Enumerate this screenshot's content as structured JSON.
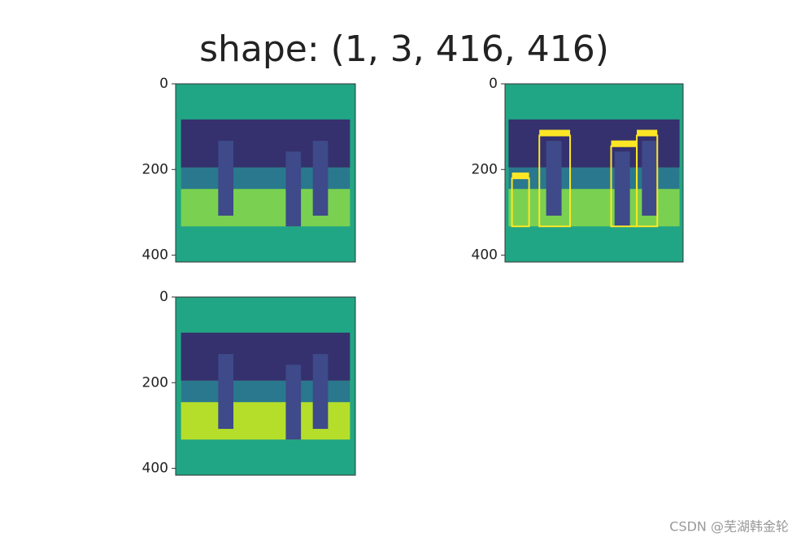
{
  "title": "shape: (1, 3, 416, 416)",
  "chart_data": [
    {
      "type": "image",
      "ylim": [
        416,
        0
      ],
      "yticks": [
        0,
        200,
        400
      ],
      "boxes": false
    },
    {
      "type": "image",
      "ylim": [
        416,
        0
      ],
      "yticks": [
        0,
        200,
        400
      ],
      "boxes": true
    },
    {
      "type": "image",
      "ylim": [
        416,
        0
      ],
      "yticks": [
        0,
        200,
        400
      ],
      "boxes": false
    }
  ],
  "watermark": "CSDN @芜湖韩金轮"
}
